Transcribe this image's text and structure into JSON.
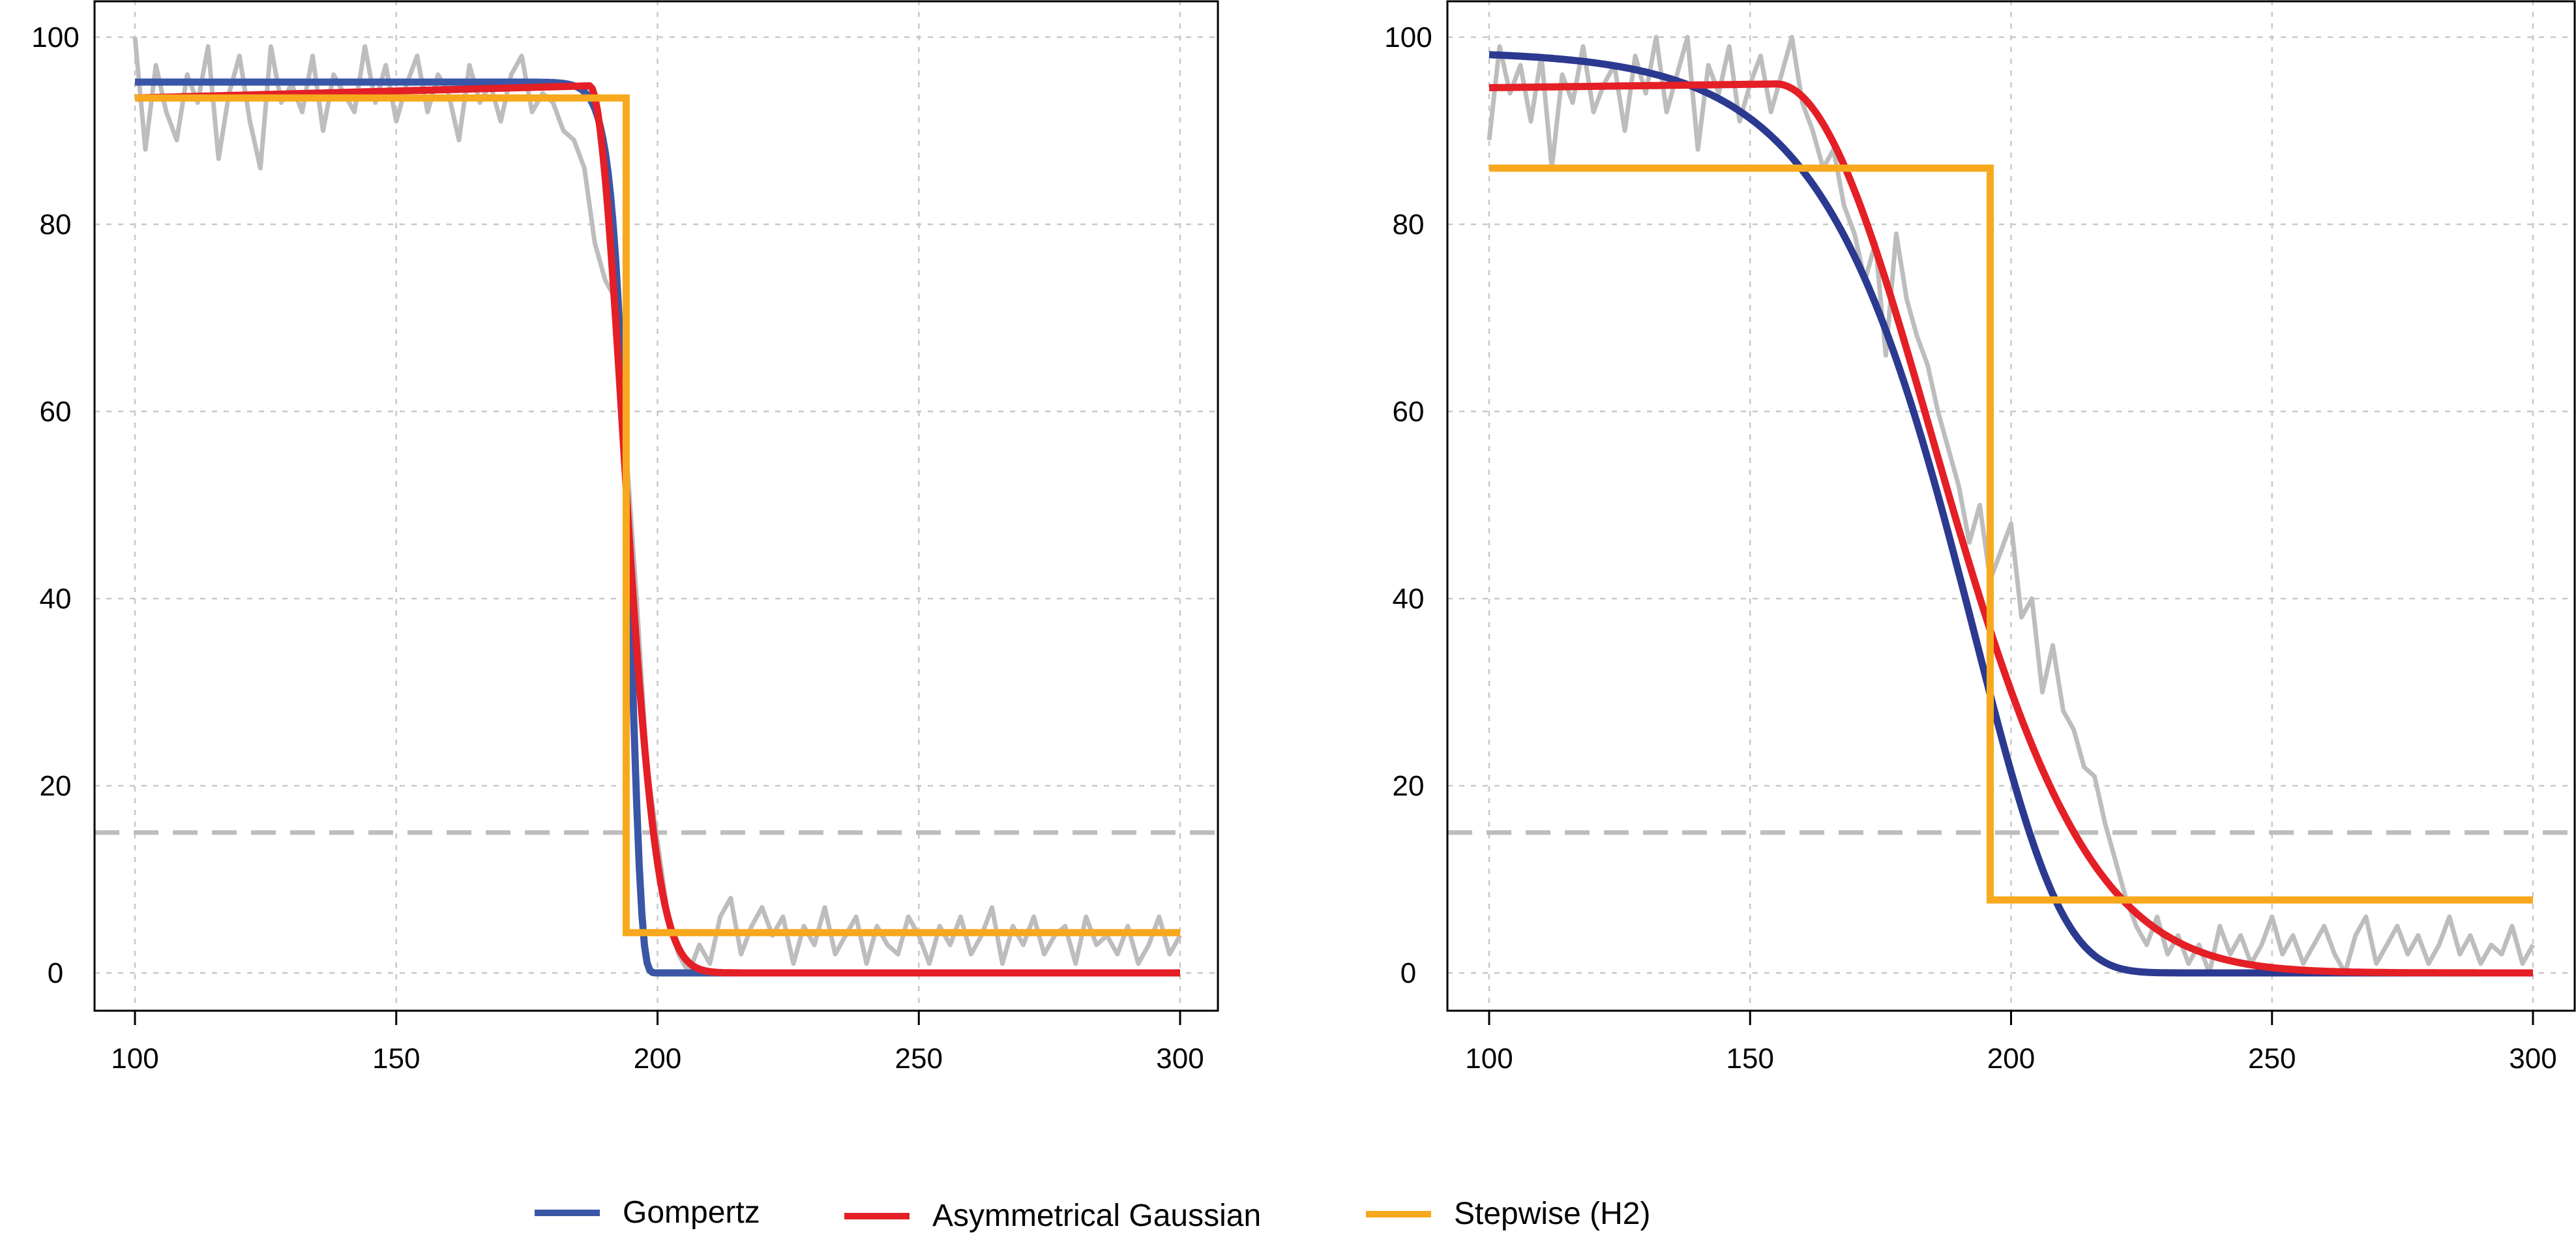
{
  "chart_data": [
    {
      "type": "line",
      "xlim": [
        100,
        300
      ],
      "ylim": [
        0,
        100
      ],
      "x_ticks": [
        "100",
        "150",
        "200",
        "250",
        "300"
      ],
      "y_ticks": [
        "0",
        "20",
        "40",
        "60",
        "80",
        "100"
      ],
      "grid": true,
      "threshold_y": 15,
      "series": [
        {
          "key": "observed",
          "color": "#bdbdbd",
          "x": [
            100,
            102,
            104,
            106,
            108,
            110,
            112,
            114,
            116,
            118,
            120,
            122,
            124,
            126,
            128,
            130,
            132,
            134,
            136,
            138,
            140,
            142,
            144,
            146,
            148,
            150,
            152,
            154,
            156,
            158,
            160,
            162,
            164,
            166,
            168,
            170,
            172,
            174,
            176,
            178,
            180,
            182,
            184,
            186,
            188,
            190,
            192,
            194,
            196,
            198,
            200,
            202,
            204,
            206,
            208,
            210,
            212,
            214,
            216,
            218,
            220,
            222,
            224,
            226,
            228,
            230,
            232,
            234,
            236,
            238,
            240,
            242,
            244,
            246,
            248,
            250,
            252,
            254,
            256,
            258,
            260,
            262,
            264,
            266,
            268,
            270,
            272,
            274,
            276,
            278,
            280,
            282,
            284,
            286,
            288,
            290,
            292,
            294,
            296,
            298,
            300
          ],
          "y": [
            100,
            88,
            97,
            92,
            89,
            96,
            93,
            99,
            87,
            94,
            98,
            91,
            86,
            99,
            93,
            95,
            92,
            98,
            90,
            96,
            94,
            92,
            99,
            93,
            97,
            91,
            95,
            98,
            92,
            96,
            94,
            89,
            97,
            93,
            95,
            91,
            96,
            98,
            92,
            94,
            93,
            90,
            89,
            86,
            78,
            74,
            72,
            56,
            40,
            22,
            14,
            6,
            2,
            0,
            3,
            1,
            6,
            8,
            2,
            5,
            7,
            4,
            6,
            1,
            5,
            3,
            7,
            2,
            4,
            6,
            1,
            5,
            3,
            2,
            6,
            4,
            1,
            5,
            3,
            6,
            2,
            4,
            7,
            1,
            5,
            3,
            6,
            2,
            4,
            5,
            1,
            6,
            3,
            4,
            2,
            5,
            1,
            3,
            6,
            2,
            4
          ]
        },
        {
          "key": "gompertz",
          "color": "#3a56a6",
          "param": {
            "a": 95.2,
            "b": 195,
            "r": 0.5
          }
        },
        {
          "key": "asym_gauss",
          "color": "#e41f26",
          "param": {
            "p": 94.8,
            "t0": 187,
            "s1": 999,
            "s2": 9,
            "start": 93.5
          }
        },
        {
          "key": "stepwise",
          "color": "#f8a81d",
          "param": {
            "hi": 93.5,
            "lo": 4.3,
            "t": 194
          }
        }
      ]
    },
    {
      "type": "line",
      "xlim": [
        100,
        300
      ],
      "ylim": [
        0,
        100
      ],
      "x_ticks": [
        "100",
        "150",
        "200",
        "250",
        "300"
      ],
      "y_ticks": [
        "0",
        "20",
        "40",
        "60",
        "80",
        "100"
      ],
      "grid": true,
      "threshold_y": 15,
      "series": [
        {
          "key": "observed",
          "color": "#bdbdbd",
          "x": [
            100,
            102,
            104,
            106,
            108,
            110,
            112,
            114,
            116,
            118,
            120,
            122,
            124,
            126,
            128,
            130,
            132,
            134,
            136,
            138,
            140,
            142,
            144,
            146,
            148,
            150,
            152,
            154,
            156,
            158,
            160,
            162,
            164,
            166,
            168,
            170,
            172,
            174,
            176,
            178,
            180,
            182,
            184,
            186,
            188,
            190,
            192,
            194,
            196,
            198,
            200,
            202,
            204,
            206,
            208,
            210,
            212,
            214,
            216,
            218,
            220,
            222,
            224,
            226,
            228,
            230,
            232,
            234,
            236,
            238,
            240,
            242,
            244,
            246,
            248,
            250,
            252,
            254,
            256,
            258,
            260,
            262,
            264,
            266,
            268,
            270,
            272,
            274,
            276,
            278,
            280,
            282,
            284,
            286,
            288,
            290,
            292,
            294,
            296,
            298,
            300
          ],
          "y": [
            89,
            99,
            94,
            97,
            91,
            98,
            86,
            96,
            93,
            99,
            92,
            95,
            97,
            90,
            98,
            94,
            100,
            92,
            96,
            100,
            88,
            97,
            94,
            99,
            91,
            95,
            98,
            92,
            96,
            100,
            93,
            90,
            86,
            88,
            82,
            79,
            74,
            78,
            66,
            79,
            72,
            68,
            65,
            60,
            56,
            52,
            46,
            50,
            42,
            45,
            48,
            38,
            40,
            30,
            35,
            28,
            26,
            22,
            21,
            16,
            12,
            8,
            5,
            3,
            6,
            2,
            4,
            1,
            3,
            0,
            5,
            2,
            4,
            1,
            3,
            6,
            2,
            4,
            1,
            3,
            5,
            2,
            0,
            4,
            6,
            1,
            3,
            5,
            2,
            4,
            1,
            3,
            6,
            2,
            4,
            1,
            3,
            2,
            5,
            1,
            3
          ]
        },
        {
          "key": "gompertz",
          "color": "#2b3990",
          "param": {
            "a": 98.5,
            "b": 193,
            "r": 0.06
          }
        },
        {
          "key": "asym_gauss",
          "color": "#e41f26",
          "param": {
            "p": 95.0,
            "t0": 155,
            "s1": 999,
            "s2": 42,
            "start": 94.6
          }
        },
        {
          "key": "stepwise",
          "color": "#f8a81d",
          "param": {
            "hi": 86,
            "lo": 7.8,
            "t": 196
          }
        }
      ]
    }
  ],
  "legend": {
    "items": [
      {
        "label": "Gompertz",
        "color": "#3a56a6"
      },
      {
        "label": "Asymmetrical Gaussian",
        "color": "#e41f26"
      },
      {
        "label": "Stepwise (H2)",
        "color": "#f8a81d"
      }
    ]
  }
}
